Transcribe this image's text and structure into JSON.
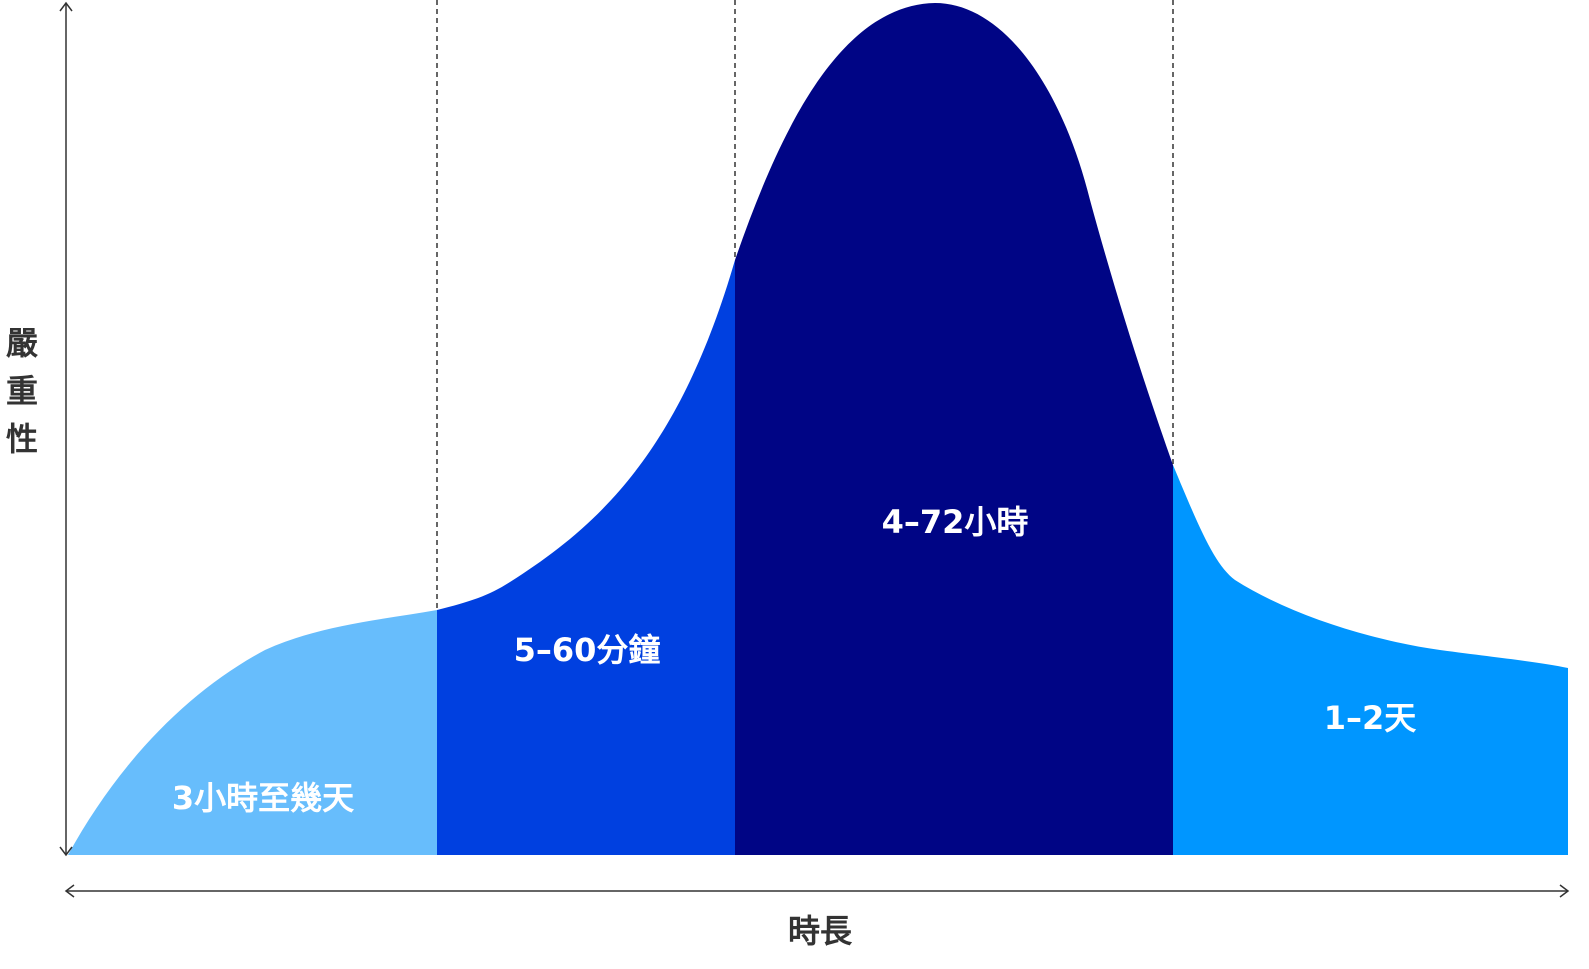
{
  "y_axis_label": "嚴重性",
  "x_axis_label": "時長",
  "regions": [
    {
      "label": "3小時至幾天"
    },
    {
      "label": "5–60分鐘"
    },
    {
      "label": "4–72小時"
    },
    {
      "label": "1–2天"
    }
  ]
}
